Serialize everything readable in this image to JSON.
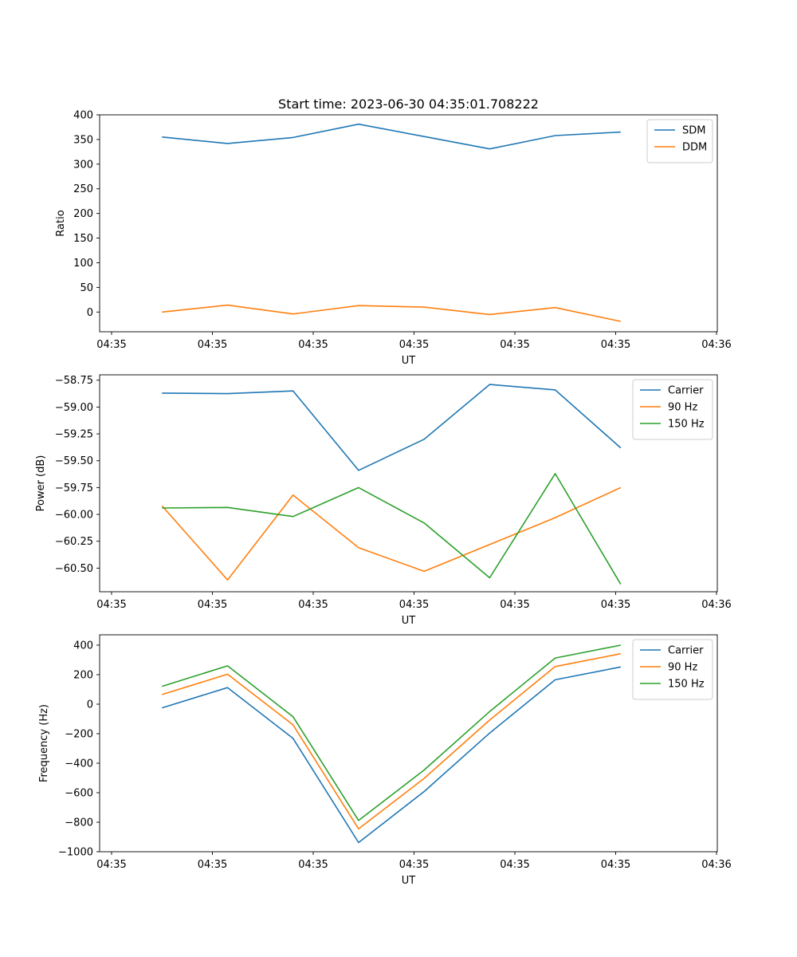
{
  "figure_title": "Start time: 2023-06-30 04:35:01.708222",
  "chart_data": [
    {
      "type": "line",
      "xlabel": "UT",
      "ylabel": "Ratio",
      "x_tick_labels": [
        "04:35",
        "04:35",
        "04:35",
        "04:35",
        "04:35",
        "04:35",
        "04:36"
      ],
      "xlim": [
        0,
        6
      ],
      "ylim": [
        -40,
        400
      ],
      "y_ticks": [
        0,
        50,
        100,
        150,
        200,
        250,
        300,
        350,
        400
      ],
      "y_tick_labels": [
        "0",
        "50",
        "100",
        "150",
        "200",
        "250",
        "300",
        "350",
        "400"
      ],
      "x": [
        0.5,
        1.15,
        1.8,
        2.45,
        3.1,
        3.75,
        4.4,
        5.05
      ],
      "series": [
        {
          "name": "SDM",
          "color": "#1f77b4",
          "values": [
            355,
            342,
            354,
            381,
            356,
            331,
            358,
            365
          ]
        },
        {
          "name": "DDM",
          "color": "#ff7f0e",
          "values": [
            0,
            14,
            -4,
            13,
            10,
            -5,
            9,
            -19
          ]
        }
      ],
      "legend": "top-right",
      "grid": false
    },
    {
      "type": "line",
      "xlabel": "UT",
      "ylabel": "Power (dB)",
      "x_tick_labels": [
        "04:35",
        "04:35",
        "04:35",
        "04:35",
        "04:35",
        "04:35",
        "04:36"
      ],
      "xlim": [
        0,
        6
      ],
      "ylim": [
        -60.72,
        -58.7
      ],
      "y_ticks": [
        -60.5,
        -60.25,
        -60.0,
        -59.75,
        -59.5,
        -59.25,
        -59.0,
        -58.75
      ],
      "y_tick_labels": [
        "−60.50",
        "−60.25",
        "−60.00",
        "−59.75",
        "−59.50",
        "−59.25",
        "−59.00",
        "−58.75"
      ],
      "x": [
        0.5,
        1.15,
        1.8,
        2.45,
        3.1,
        3.75,
        4.4,
        5.05
      ],
      "series": [
        {
          "name": "Carrier",
          "color": "#1f77b4",
          "values": [
            -58.87,
            -58.875,
            -58.85,
            -59.59,
            -59.3,
            -58.79,
            -58.84,
            -59.38
          ]
        },
        {
          "name": "90 Hz",
          "color": "#ff7f0e",
          "values": [
            -59.92,
            -60.61,
            -59.82,
            -60.31,
            -60.53,
            -60.28,
            -60.03,
            -59.75
          ]
        },
        {
          "name": "150 Hz",
          "color": "#2ca02c",
          "values": [
            -59.94,
            -59.935,
            -60.02,
            -59.75,
            -60.08,
            -60.59,
            -59.62,
            -60.65
          ]
        }
      ],
      "legend": "top-right",
      "grid": false
    },
    {
      "type": "line",
      "xlabel": "UT",
      "ylabel": "Frequency (Hz)",
      "x_tick_labels": [
        "04:35",
        "04:35",
        "04:35",
        "04:35",
        "04:35",
        "04:35",
        "04:36"
      ],
      "xlim": [
        0,
        6
      ],
      "ylim": [
        -1000,
        470
      ],
      "y_ticks": [
        -1000,
        -800,
        -600,
        -400,
        -200,
        0,
        200,
        400
      ],
      "y_tick_labels": [
        "−1000",
        "−800",
        "−600",
        "−400",
        "−200",
        "0",
        "200",
        "400"
      ],
      "x": [
        0.5,
        1.15,
        1.8,
        2.45,
        3.1,
        3.75,
        4.4,
        5.05
      ],
      "series": [
        {
          "name": "Carrier",
          "color": "#1f77b4",
          "values": [
            -25,
            112,
            -232,
            -938,
            -592,
            -196,
            165,
            252
          ]
        },
        {
          "name": "90 Hz",
          "color": "#ff7f0e",
          "values": [
            65,
            203,
            -140,
            -845,
            -503,
            -108,
            255,
            342
          ]
        },
        {
          "name": "150 Hz",
          "color": "#2ca02c",
          "values": [
            121,
            260,
            -85,
            -788,
            -446,
            -50,
            313,
            400
          ]
        }
      ],
      "legend": "top-right",
      "grid": false
    }
  ]
}
